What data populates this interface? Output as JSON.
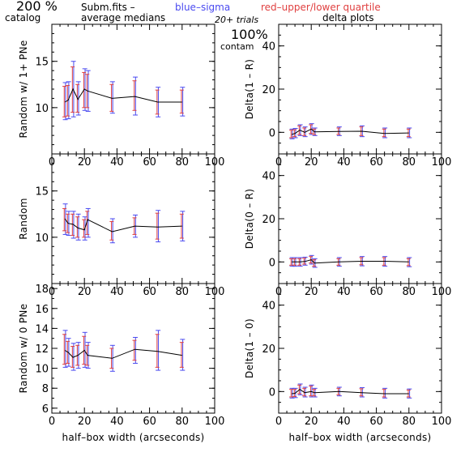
{
  "header": {
    "percent": "200 %",
    "catalog": "catalog",
    "subm": "Subm.fits  –",
    "avg": "average medians",
    "blue": "blue–sigma",
    "red": "red–upper/lower quartile",
    "trials": "20+ trials",
    "delta": "delta plots",
    "contam_pct": "100%",
    "contam": "contam"
  },
  "colors": {
    "line": "#000000",
    "sigma": "#4a4af0",
    "quartile": "#e04040"
  },
  "chart_data": [
    {
      "type": "line",
      "panel": "left-top",
      "ylabel": "Random w/ 1+ PNe",
      "xlabel": "",
      "xlim": [
        0,
        100
      ],
      "ylim": [
        5,
        19
      ],
      "xticks": [
        0,
        20,
        40,
        60,
        80,
        100
      ],
      "yticks": [
        10,
        15
      ],
      "x": [
        8,
        10,
        13,
        16,
        20,
        22,
        37,
        51,
        65,
        80
      ],
      "y": [
        10.6,
        10.8,
        12.0,
        10.9,
        12.0,
        11.8,
        11.0,
        11.2,
        10.6,
        10.6
      ],
      "sigma_low": [
        8.7,
        8.8,
        9.0,
        9.2,
        9.7,
        9.6,
        9.4,
        9.2,
        9.0,
        9.1
      ],
      "sigma_high": [
        12.7,
        12.8,
        15.0,
        12.8,
        14.2,
        14.0,
        12.8,
        13.3,
        12.2,
        12.2
      ],
      "quart_low": [
        9.0,
        9.1,
        9.5,
        9.5,
        10.0,
        10.0,
        9.6,
        9.7,
        9.3,
        9.4
      ],
      "quart_high": [
        12.3,
        12.4,
        14.4,
        12.5,
        13.8,
        13.6,
        12.5,
        12.9,
        11.9,
        11.9
      ]
    },
    {
      "type": "line",
      "panel": "right-top",
      "ylabel": "Delta(1 – R)",
      "xlabel": "",
      "xlim": [
        0,
        100
      ],
      "ylim": [
        -10,
        50
      ],
      "xticks": [
        0,
        20,
        40,
        60,
        80,
        100
      ],
      "yticks": [
        0,
        20,
        40
      ],
      "x": [
        8,
        10,
        13,
        16,
        20,
        22,
        37,
        51,
        65,
        80
      ],
      "y": [
        -1.0,
        -0.5,
        1.0,
        0.0,
        1.5,
        0.2,
        0.4,
        0.5,
        -0.5,
        -0.3
      ],
      "sigma_low": [
        -3.0,
        -2.5,
        -1.5,
        -2.0,
        -1.0,
        -1.5,
        -1.5,
        -2.0,
        -2.5,
        -2.5
      ],
      "sigma_high": [
        1.5,
        1.8,
        3.5,
        2.5,
        4.0,
        2.0,
        2.5,
        3.0,
        2.0,
        2.0
      ],
      "quart_low": [
        -2.5,
        -2.0,
        -1.0,
        -1.5,
        -0.5,
        -1.0,
        -1.0,
        -1.5,
        -2.0,
        -2.0
      ],
      "quart_high": [
        1.0,
        1.2,
        3.0,
        2.0,
        3.5,
        1.5,
        2.0,
        2.5,
        1.5,
        1.5
      ]
    },
    {
      "type": "line",
      "panel": "left-middle",
      "ylabel": "Random",
      "xlabel": "",
      "xlim": [
        0,
        100
      ],
      "ylim": [
        5,
        19
      ],
      "xticks": [
        0,
        20,
        40,
        60,
        80,
        100
      ],
      "yticks": [
        10,
        15
      ],
      "x": [
        8,
        10,
        13,
        16,
        20,
        22,
        37,
        51,
        65,
        80
      ],
      "y": [
        12.0,
        11.5,
        11.4,
        11.0,
        10.8,
        11.9,
        10.6,
        11.2,
        11.1,
        11.2
      ],
      "sigma_low": [
        10.3,
        10.2,
        9.9,
        9.7,
        9.7,
        10.0,
        9.4,
        10.0,
        9.5,
        9.6
      ],
      "sigma_high": [
        13.6,
        12.8,
        12.8,
        12.5,
        12.2,
        13.1,
        12.0,
        12.4,
        12.9,
        12.8
      ],
      "quart_low": [
        10.7,
        10.5,
        10.2,
        10.0,
        10.0,
        10.3,
        9.7,
        10.3,
        9.8,
        9.9
      ],
      "quart_high": [
        13.1,
        12.5,
        12.5,
        12.2,
        11.9,
        12.8,
        11.7,
        12.1,
        12.6,
        12.5
      ]
    },
    {
      "type": "line",
      "panel": "right-middle",
      "ylabel": "Delta(0 – R)",
      "xlabel": "",
      "xlim": [
        0,
        100
      ],
      "ylim": [
        -10,
        50
      ],
      "xticks": [
        0,
        20,
        40,
        60,
        80,
        100
      ],
      "yticks": [
        0,
        20,
        40
      ],
      "x": [
        8,
        10,
        13,
        16,
        20,
        22,
        37,
        51,
        65,
        80
      ],
      "y": [
        0.0,
        0.0,
        0.0,
        0.2,
        1.0,
        -0.5,
        0.0,
        0.3,
        0.3,
        0.0
      ],
      "sigma_low": [
        -2.0,
        -2.0,
        -2.0,
        -1.5,
        -1.0,
        -2.5,
        -2.0,
        -1.8,
        -2.0,
        -2.2
      ],
      "sigma_high": [
        2.0,
        2.0,
        2.0,
        2.2,
        3.0,
        1.5,
        2.0,
        2.5,
        2.5,
        2.0
      ],
      "quart_low": [
        -1.5,
        -1.5,
        -1.5,
        -1.0,
        -0.5,
        -2.0,
        -1.5,
        -1.3,
        -1.5,
        -1.7
      ],
      "quart_high": [
        1.5,
        1.5,
        1.5,
        1.7,
        2.5,
        1.0,
        1.5,
        2.0,
        2.0,
        1.5
      ]
    },
    {
      "type": "line",
      "panel": "left-bottom",
      "ylabel": "Random w/ 0 PNe",
      "xlabel": "half–box width (arcseconds)",
      "xlim": [
        0,
        100
      ],
      "ylim": [
        5.5,
        18.5
      ],
      "xticks": [
        0,
        20,
        40,
        60,
        80,
        100
      ],
      "yticks": [
        6,
        8,
        10,
        12,
        14,
        16,
        18
      ],
      "x": [
        8,
        10,
        13,
        16,
        20,
        22,
        37,
        51,
        65,
        80
      ],
      "y": [
        11.8,
        11.6,
        11.1,
        11.3,
        11.8,
        11.3,
        11.0,
        11.9,
        11.7,
        11.3
      ],
      "sigma_low": [
        10.1,
        10.2,
        9.8,
        10.0,
        10.1,
        10.0,
        9.7,
        10.5,
        9.8,
        9.8
      ],
      "sigma_high": [
        13.8,
        13.0,
        12.5,
        12.6,
        13.6,
        12.6,
        12.3,
        13.1,
        13.8,
        12.9
      ],
      "quart_low": [
        10.4,
        10.5,
        10.1,
        10.3,
        10.4,
        10.3,
        10.0,
        10.8,
        10.1,
        10.1
      ],
      "quart_high": [
        13.4,
        12.7,
        12.2,
        12.3,
        13.2,
        12.3,
        12.0,
        12.8,
        13.4,
        12.6
      ]
    },
    {
      "type": "line",
      "panel": "right-bottom",
      "ylabel": "Delta(1 – 0)",
      "xlabel": "half–box width (arcseconds)",
      "xlim": [
        0,
        100
      ],
      "ylim": [
        -10,
        50
      ],
      "xticks": [
        0,
        20,
        40,
        60,
        80,
        100
      ],
      "yticks": [
        0,
        20,
        40
      ],
      "x": [
        8,
        10,
        13,
        16,
        20,
        22,
        37,
        51,
        65,
        80
      ],
      "y": [
        -1.0,
        -0.8,
        1.0,
        -0.5,
        0.0,
        -0.5,
        0.0,
        -0.5,
        -1.0,
        -1.0
      ],
      "sigma_low": [
        -3.0,
        -2.8,
        -1.5,
        -2.5,
        -2.5,
        -2.5,
        -2.0,
        -2.5,
        -3.0,
        -3.0
      ],
      "sigma_high": [
        1.5,
        1.5,
        3.5,
        2.0,
        3.0,
        1.5,
        2.0,
        1.8,
        1.5,
        1.2
      ],
      "quart_low": [
        -2.5,
        -2.3,
        -1.0,
        -2.0,
        -2.0,
        -2.0,
        -1.5,
        -2.0,
        -2.5,
        -2.5
      ],
      "quart_high": [
        1.0,
        1.0,
        3.0,
        1.5,
        2.5,
        1.0,
        1.5,
        1.3,
        1.0,
        0.7
      ]
    }
  ]
}
